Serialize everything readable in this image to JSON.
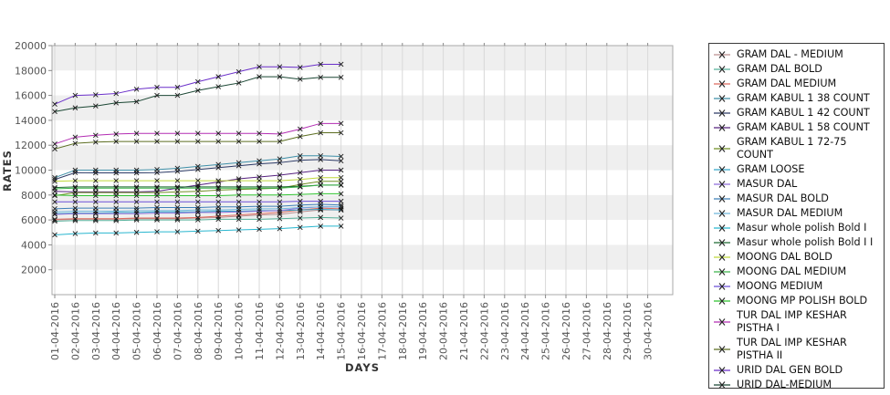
{
  "chart_data": {
    "type": "line",
    "title": "",
    "xlabel": "DAYS",
    "ylabel": "RATES",
    "ylim": [
      0,
      20000
    ],
    "y_ticks": [
      2000,
      4000,
      6000,
      8000,
      10000,
      12000,
      14000,
      16000,
      18000,
      20000
    ],
    "grid": true,
    "legend_position": "right",
    "marker": "x",
    "marker_color": "#1a1a1a",
    "band_color": "#efefef",
    "gridline_color": "#d9d9d9",
    "border_color": "#a8a8a8",
    "tick_color": "#888888",
    "categories": [
      "01-04-2016",
      "02-04-2016",
      "03-04-2016",
      "04-04-2016",
      "05-04-2016",
      "06-04-2016",
      "07-04-2016",
      "08-04-2016",
      "09-04-2016",
      "10-04-2016",
      "11-04-2016",
      "12-04-2016",
      "13-04-2016",
      "14-04-2016",
      "15-04-2016",
      "16-04-2016",
      "17-04-2016",
      "18-04-2016",
      "19-04-2016",
      "20-04-2016",
      "21-04-2016",
      "22-04-2016",
      "23-04-2016",
      "24-04-2016",
      "25-04-2016",
      "26-04-2016",
      "27-04-2016",
      "28-04-2016",
      "29-04-2016",
      "30-04-2016"
    ],
    "data_days": [
      "01-04-2016",
      "02-04-2016",
      "03-04-2016",
      "04-04-2016",
      "05-04-2016",
      "06-04-2016",
      "07-04-2016",
      "08-04-2016",
      "09-04-2016",
      "10-04-2016",
      "11-04-2016",
      "12-04-2016",
      "13-04-2016",
      "14-04-2016",
      "15-04-2016"
    ],
    "series": [
      {
        "name": "GRAM DAL - MEDIUM",
        "color": "#BC8F8F",
        "values": [
          6000,
          6050,
          6050,
          6050,
          6100,
          6100,
          6100,
          6150,
          6200,
          6300,
          6400,
          6450,
          6650,
          6800,
          6800
        ]
      },
      {
        "name": "GRAM DAL BOLD",
        "color": "#56B09A",
        "values": [
          5900,
          5950,
          5950,
          5950,
          6000,
          6000,
          6000,
          6000,
          6050,
          6050,
          6050,
          6100,
          6150,
          6200,
          6150
        ]
      },
      {
        "name": "GRAM DAL MEDIUM",
        "color": "#DE6A5F",
        "values": [
          6050,
          6100,
          6100,
          6100,
          6150,
          6150,
          6150,
          6200,
          6300,
          6400,
          6500,
          6600,
          6800,
          6950,
          6900
        ]
      },
      {
        "name": "GRAM KABUL 1 38 COUNT",
        "color": "#3E8FA8",
        "values": [
          9400,
          10000,
          10000,
          10000,
          10000,
          10050,
          10150,
          10300,
          10450,
          10600,
          10750,
          10900,
          11150,
          11150,
          11100
        ]
      },
      {
        "name": "GRAM KABUL 1 42 COUNT",
        "color": "#2C3A66",
        "values": [
          9250,
          9800,
          9780,
          9780,
          9780,
          9800,
          9900,
          10050,
          10200,
          10350,
          10500,
          10600,
          10800,
          10850,
          10750
        ]
      },
      {
        "name": "GRAM KABUL 1 58 COUNT",
        "color": "#55217E",
        "values": [
          8300,
          8250,
          8250,
          8250,
          8250,
          8300,
          8550,
          8800,
          9050,
          9300,
          9450,
          9600,
          9800,
          10000,
          10000
        ]
      },
      {
        "name": "GRAM KABUL 1 72-75 COUNT",
        "color": "#6F8F23",
        "values": [
          7950,
          8200,
          8200,
          8200,
          8200,
          8200,
          8250,
          8300,
          8400,
          8450,
          8500,
          8550,
          8850,
          9100,
          9100
        ]
      },
      {
        "name": "GRAM LOOSE",
        "color": "#35A7CA",
        "values": [
          6500,
          6550,
          6550,
          6600,
          6600,
          6650,
          6650,
          6650,
          6700,
          6700,
          6750,
          6750,
          6800,
          6850,
          6800
        ]
      },
      {
        "name": "MASUR DAL",
        "color": "#8F6CD9",
        "values": [
          6450,
          6500,
          6500,
          6500,
          6500,
          6550,
          6550,
          6600,
          6600,
          6650,
          6700,
          6750,
          6950,
          7050,
          7050
        ]
      },
      {
        "name": "MASUR DAL BOLD",
        "color": "#3C7FB8",
        "values": [
          6900,
          6950,
          6950,
          6950,
          6950,
          7000,
          7000,
          7000,
          7050,
          7050,
          7100,
          7100,
          7200,
          7250,
          7200
        ]
      },
      {
        "name": "MASUR DAL MEDIUM",
        "color": "#6FB8DC",
        "values": [
          6650,
          6700,
          6700,
          6700,
          6750,
          6750,
          6750,
          6800,
          6800,
          6850,
          6900,
          6900,
          7000,
          7050,
          7050
        ]
      },
      {
        "name": "Masur whole polish Bold I",
        "color": "#29B6CF",
        "values": [
          4800,
          4900,
          4950,
          4950,
          5000,
          5050,
          5050,
          5100,
          5150,
          5200,
          5250,
          5300,
          5400,
          5500,
          5500
        ]
      },
      {
        "name": "Masur whole polish Bold I I",
        "color": "#1F6B33",
        "values": [
          8600,
          8650,
          8650,
          8650,
          8650,
          8650,
          8650,
          8650,
          8650,
          8650,
          8650,
          8650,
          8700,
          8800,
          8800
        ]
      },
      {
        "name": "MOONG DAL BOLD",
        "color": "#BFD73A",
        "values": [
          9100,
          9150,
          9150,
          9150,
          9150,
          9150,
          9150,
          9150,
          9150,
          9150,
          9150,
          9150,
          9250,
          9400,
          9400
        ]
      },
      {
        "name": "MOONG DAL MEDIUM",
        "color": "#3CB54A",
        "values": [
          8500,
          8550,
          8550,
          8550,
          8550,
          8550,
          8550,
          8550,
          8550,
          8550,
          8550,
          8550,
          8650,
          8800,
          8800
        ]
      },
      {
        "name": "MOONG MEDIUM",
        "color": "#6A4FD8",
        "values": [
          7450,
          7450,
          7450,
          7450,
          7450,
          7450,
          7450,
          7450,
          7450,
          7450,
          7450,
          7450,
          7500,
          7500,
          7500
        ]
      },
      {
        "name": "MOONG MP POLISH BOLD",
        "color": "#2EC22E",
        "values": [
          8000,
          7950,
          7950,
          7950,
          7950,
          7950,
          7950,
          7950,
          7950,
          8000,
          8000,
          8000,
          8050,
          8100,
          8100
        ]
      },
      {
        "name": "TUR DAL IMP KESHAR PISTHA I",
        "color": "#B32DB3",
        "values": [
          12100,
          12650,
          12800,
          12900,
          12950,
          12950,
          12950,
          12950,
          12950,
          12950,
          12950,
          12900,
          13300,
          13750,
          13750
        ]
      },
      {
        "name": "TUR DAL IMP KESHAR PISTHA II",
        "color": "#5C6E21",
        "values": [
          11700,
          12150,
          12250,
          12300,
          12300,
          12300,
          12300,
          12300,
          12300,
          12300,
          12300,
          12300,
          12700,
          13000,
          13000
        ]
      },
      {
        "name": "URID DAL GEN BOLD",
        "color": "#6A2FC9",
        "values": [
          15300,
          16000,
          16050,
          16150,
          16500,
          16650,
          16650,
          17100,
          17500,
          17900,
          18300,
          18300,
          18250,
          18500,
          18500
        ]
      },
      {
        "name": "URID DAL-MEDIUM",
        "color": "#1B4734",
        "values": [
          14700,
          15000,
          15150,
          15400,
          15500,
          16000,
          16000,
          16400,
          16700,
          17000,
          17500,
          17500,
          17300,
          17450,
          17450
        ]
      }
    ]
  }
}
